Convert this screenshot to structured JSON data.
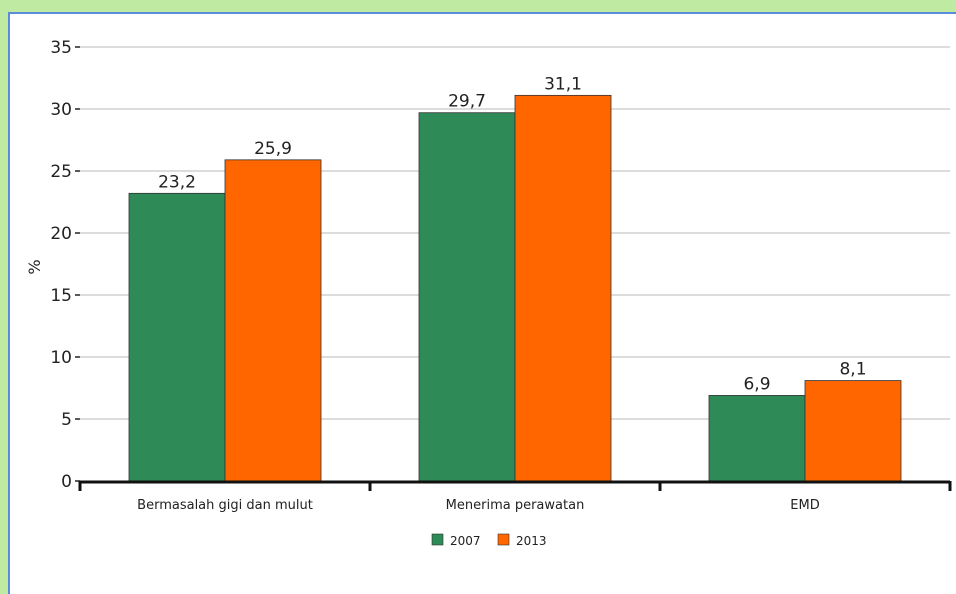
{
  "chart_data": {
    "type": "bar",
    "categories": [
      "Bermasalah gigi dan mulut",
      "Menerima perawatan",
      "EMD"
    ],
    "series": [
      {
        "name": "2007",
        "values": [
          23.2,
          29.7,
          6.9
        ],
        "labels": [
          "23,2",
          "29,7",
          "6,9"
        ],
        "color": "#2e8b57"
      },
      {
        "name": "2013",
        "values": [
          25.9,
          31.1,
          8.1
        ],
        "labels": [
          "25,9",
          "31,1",
          "8,1"
        ],
        "color": "#ff6600"
      }
    ],
    "title": "",
    "xlabel": "",
    "ylabel": "%",
    "ylim": [
      0,
      35
    ],
    "yticks": [
      0,
      5,
      10,
      15,
      20,
      25,
      30,
      35
    ],
    "grid": true,
    "legend": "bottom-center"
  }
}
